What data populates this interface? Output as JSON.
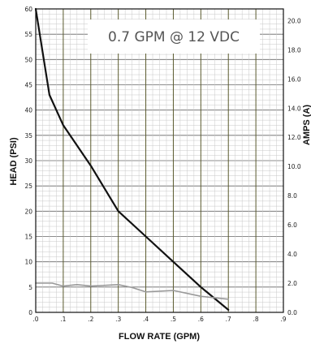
{
  "chart_data": {
    "type": "line",
    "annotation": "0.7 GPM @ 12 VDC",
    "xlabel": "FLOW RATE (GPM)",
    "ylabel": "HEAD   (PSI)",
    "y2label": "AMPS  (A)",
    "xlim": [
      0,
      0.9
    ],
    "ylim": [
      0,
      60
    ],
    "y2lim": [
      0,
      20.8
    ],
    "x_tick_labels": [
      ".0",
      ".1",
      ".2",
      ".3",
      ".4",
      ".5",
      ".6",
      ".7",
      ".8",
      ".9"
    ],
    "x_tick_values": [
      0,
      0.1,
      0.2,
      0.3,
      0.4,
      0.5,
      0.6,
      0.7,
      0.8,
      0.9
    ],
    "y_tick_labels": [
      "0",
      "5",
      "10",
      "15",
      "20",
      "25",
      "30",
      "35",
      "40",
      "45",
      "50",
      "55",
      "60"
    ],
    "y_tick_values": [
      0,
      5,
      10,
      15,
      20,
      25,
      30,
      35,
      40,
      45,
      50,
      55,
      60
    ],
    "y2_tick_labels": [
      "0.0",
      "2.0",
      "4.0",
      "6.0",
      "8.0",
      "10.0",
      "12.0",
      "14.0",
      "16.0",
      "18.0",
      "20.0"
    ],
    "y2_tick_values": [
      0,
      2,
      4,
      6,
      8,
      10,
      12,
      14,
      16,
      18,
      20
    ],
    "grid": true,
    "series": [
      {
        "axis": "left",
        "color": "#111111",
        "x": [
          0.0,
          0.05,
          0.1,
          0.2,
          0.3,
          0.4,
          0.5,
          0.6,
          0.7
        ],
        "y": [
          60,
          43,
          37,
          29,
          20,
          15,
          10,
          5,
          0.5
        ]
      },
      {
        "axis": "right",
        "color": "#999999",
        "x": [
          0.0,
          0.06,
          0.1,
          0.15,
          0.2,
          0.3,
          0.35,
          0.4,
          0.5,
          0.6,
          0.7
        ],
        "y": [
          2.0,
          2.0,
          1.8,
          1.9,
          1.8,
          1.9,
          1.7,
          1.4,
          1.5,
          1.1,
          0.9
        ]
      }
    ]
  }
}
